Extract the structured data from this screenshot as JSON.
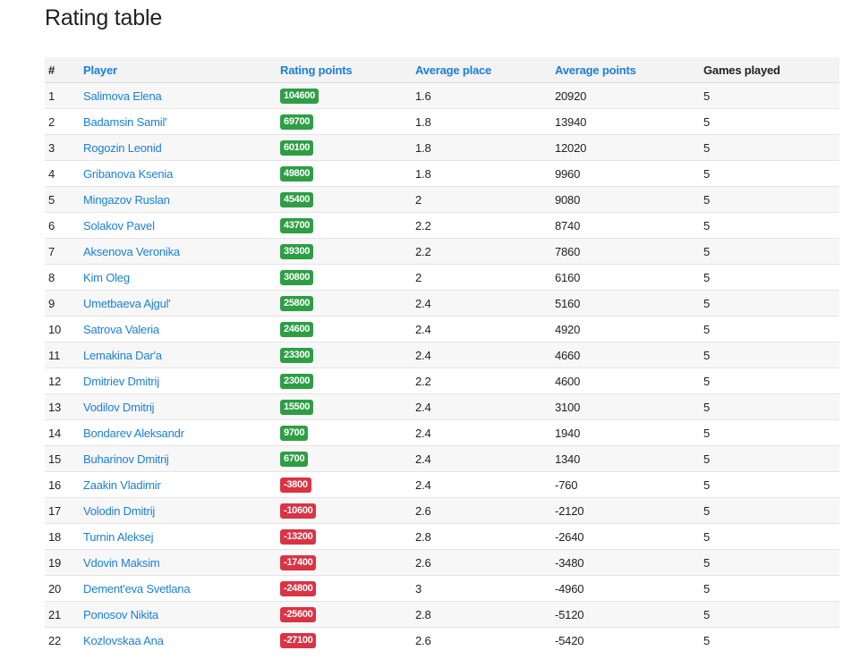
{
  "page": {
    "title": "Rating table"
  },
  "colors": {
    "link": "#1a7fd6",
    "badge_positive": "#2e9e45",
    "badge_negative": "#d93445",
    "header_bg": "#f3f3f3",
    "row_stripe": "#f7f7f7"
  },
  "table": {
    "headers": {
      "num": "#",
      "player": "Player",
      "rating": "Rating points",
      "place": "Average place",
      "points": "Average points",
      "games": "Games played"
    },
    "rows": [
      {
        "num": "1",
        "player": "Salimova Elena",
        "rating": "104600",
        "place": "1.6",
        "points": "20920",
        "games": "5"
      },
      {
        "num": "2",
        "player": "Badamsin Samil'",
        "rating": "69700",
        "place": "1.8",
        "points": "13940",
        "games": "5"
      },
      {
        "num": "3",
        "player": "Rogozin Leonid",
        "rating": "60100",
        "place": "1.8",
        "points": "12020",
        "games": "5"
      },
      {
        "num": "4",
        "player": "Gribanova Ksenia",
        "rating": "49800",
        "place": "1.8",
        "points": "9960",
        "games": "5"
      },
      {
        "num": "5",
        "player": "Mingazov Ruslan",
        "rating": "45400",
        "place": "2",
        "points": "9080",
        "games": "5"
      },
      {
        "num": "6",
        "player": "Solakov Pavel",
        "rating": "43700",
        "place": "2.2",
        "points": "8740",
        "games": "5"
      },
      {
        "num": "7",
        "player": "Aksenova Veronika",
        "rating": "39300",
        "place": "2.2",
        "points": "7860",
        "games": "5"
      },
      {
        "num": "8",
        "player": "Kim Oleg",
        "rating": "30800",
        "place": "2",
        "points": "6160",
        "games": "5"
      },
      {
        "num": "9",
        "player": "Umetbaeva Ajgul'",
        "rating": "25800",
        "place": "2.4",
        "points": "5160",
        "games": "5"
      },
      {
        "num": "10",
        "player": "Satrova Valeria",
        "rating": "24600",
        "place": "2.4",
        "points": "4920",
        "games": "5"
      },
      {
        "num": "11",
        "player": "Lemakina Dar'a",
        "rating": "23300",
        "place": "2.4",
        "points": "4660",
        "games": "5"
      },
      {
        "num": "12",
        "player": "Dmitriev Dmitrij",
        "rating": "23000",
        "place": "2.2",
        "points": "4600",
        "games": "5"
      },
      {
        "num": "13",
        "player": "Vodilov Dmitrij",
        "rating": "15500",
        "place": "2.4",
        "points": "3100",
        "games": "5"
      },
      {
        "num": "14",
        "player": "Bondarev Aleksandr",
        "rating": "9700",
        "place": "2.4",
        "points": "1940",
        "games": "5"
      },
      {
        "num": "15",
        "player": "Buharinov Dmitrij",
        "rating": "6700",
        "place": "2.4",
        "points": "1340",
        "games": "5"
      },
      {
        "num": "16",
        "player": "Zaakin Vladimir",
        "rating": "-3800",
        "place": "2.4",
        "points": "-760",
        "games": "5"
      },
      {
        "num": "17",
        "player": "Volodin Dmitrij",
        "rating": "-10600",
        "place": "2.6",
        "points": "-2120",
        "games": "5"
      },
      {
        "num": "18",
        "player": "Turnin Aleksej",
        "rating": "-13200",
        "place": "2.8",
        "points": "-2640",
        "games": "5"
      },
      {
        "num": "19",
        "player": "Vdovin Maksim",
        "rating": "-17400",
        "place": "2.6",
        "points": "-3480",
        "games": "5"
      },
      {
        "num": "20",
        "player": "Dement'eva Svetlana",
        "rating": "-24800",
        "place": "3",
        "points": "-4960",
        "games": "5"
      },
      {
        "num": "21",
        "player": "Ponosov Nikita",
        "rating": "-25600",
        "place": "2.8",
        "points": "-5120",
        "games": "5"
      },
      {
        "num": "22",
        "player": "Kozlovskaa Ana",
        "rating": "-27100",
        "place": "2.6",
        "points": "-5420",
        "games": "5"
      }
    ]
  }
}
